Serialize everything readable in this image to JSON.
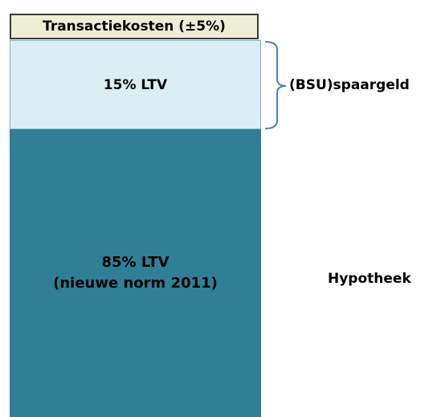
{
  "blocks": [
    {
      "lines": [
        "Transactiekosten (±5%)"
      ]
    },
    {
      "lines": [
        "15% LTV"
      ]
    },
    {
      "lines": [
        "85% LTV",
        "(nieuwe norm 2011)"
      ]
    }
  ],
  "side_labels": [
    "(BSU)spaargeld",
    "Hypotheek"
  ]
}
